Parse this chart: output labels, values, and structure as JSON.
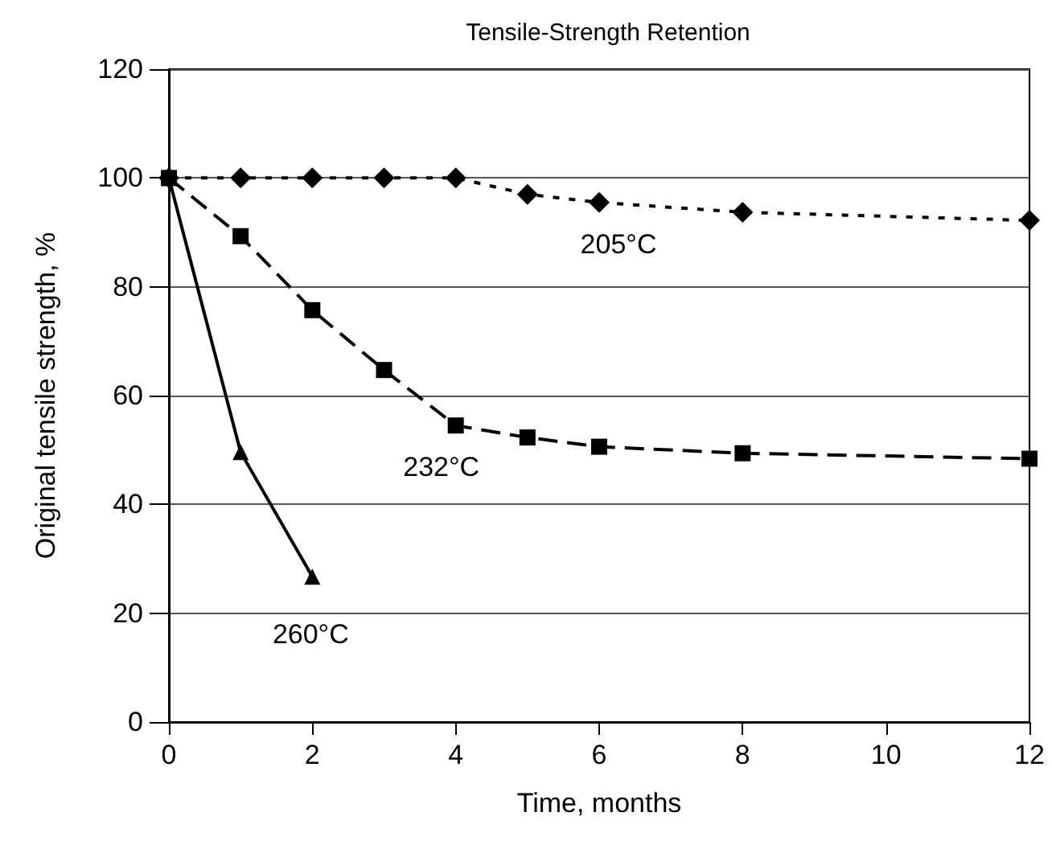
{
  "chart_data": {
    "type": "line",
    "title": "Tensile-Strength Retention",
    "xlabel": "Time, months",
    "ylabel": "Original tensile strength, %",
    "xlim": [
      0,
      12
    ],
    "xticks": [
      0,
      2,
      4,
      6,
      8,
      10,
      12
    ],
    "ylim": [
      0,
      120
    ],
    "yticks": [
      0,
      20,
      40,
      60,
      80,
      100,
      120
    ],
    "grid": "y",
    "series": [
      {
        "name": "205°C",
        "color": "#000000",
        "marker": "diamond",
        "line_style": "dotted",
        "x": [
          0,
          1,
          2,
          3,
          4,
          5,
          6,
          8,
          12
        ],
        "values": [
          100,
          100,
          100,
          100,
          100,
          97,
          95.5,
          93.7,
          92.2
        ]
      },
      {
        "name": "232°C",
        "color": "#000000",
        "marker": "square",
        "line_style": "dashed",
        "x": [
          0,
          1,
          2,
          3,
          4,
          5,
          6,
          8,
          12
        ],
        "values": [
          100,
          89.3,
          75.7,
          64.7,
          54.5,
          52.3,
          50.6,
          49.4,
          48.4
        ]
      },
      {
        "name": "260°C",
        "color": "#000000",
        "marker": "triangle",
        "line_style": "solid",
        "x": [
          0,
          1,
          2
        ],
        "values": [
          100,
          49.6,
          26.7
        ]
      }
    ]
  }
}
